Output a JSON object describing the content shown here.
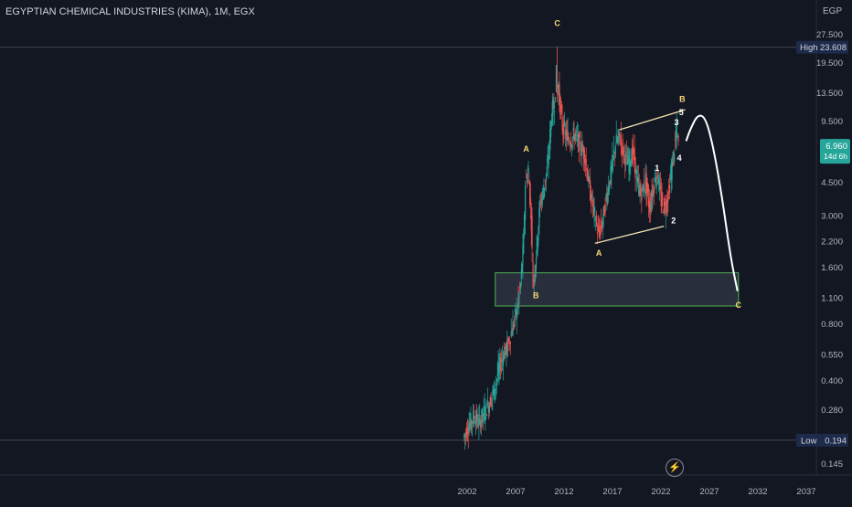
{
  "header": {
    "title": "EGYPTIAN CHEMICAL INDUSTRIES (KIMA), 1M, EGX",
    "currency": "EGP"
  },
  "price_scale": {
    "ticks": [
      "27.500",
      "19.500",
      "13.500",
      "9.500",
      "4.500",
      "3.000",
      "2.200",
      "1.600",
      "1.100",
      "0.800",
      "0.550",
      "0.400",
      "0.280",
      "0.145"
    ],
    "tick_values": [
      27.5,
      19.5,
      13.5,
      9.5,
      4.5,
      3.0,
      2.2,
      1.6,
      1.1,
      0.8,
      0.55,
      0.4,
      0.28,
      0.145
    ],
    "high": {
      "label": "High",
      "value": "23.608"
    },
    "low": {
      "label": "Low",
      "value": "0.194"
    },
    "last": {
      "value": "6.960",
      "countdown": "14d 6h"
    }
  },
  "time_scale": {
    "ticks": [
      "2002",
      "2007",
      "2012",
      "2017",
      "2022",
      "2027",
      "2032",
      "2037"
    ]
  },
  "colors": {
    "background": "#131722",
    "up": "#26a69a",
    "down": "#ef5350",
    "wave_label_yellow": "#f7d774",
    "wave_label_white": "#ffffff",
    "zone_border": "#4caf50",
    "zone_fill": "#2e3242",
    "axis_text": "#b2b5be",
    "high_low_bg": "#1e2a4a",
    "last_price_bg": "#26a69a"
  },
  "annotations": {
    "wave_labels": [
      {
        "text": "C",
        "year": 2011.3,
        "price": 30.5,
        "color": "yellow"
      },
      {
        "text": "A",
        "year": 2008.1,
        "price": 6.6,
        "color": "yellow"
      },
      {
        "text": "B",
        "year": 2009.1,
        "price": 1.1,
        "color": "yellow"
      },
      {
        "text": "A",
        "year": 2015.6,
        "price": 1.85,
        "color": "yellow"
      },
      {
        "text": "B",
        "year": 2024.2,
        "price": 12.1,
        "color": "yellow"
      },
      {
        "text": "5",
        "year": 2024.1,
        "price": 10.3,
        "color": "white"
      },
      {
        "text": "3",
        "year": 2023.6,
        "price": 9.1,
        "color": "white"
      },
      {
        "text": "1",
        "year": 2021.6,
        "price": 5.2,
        "color": "white"
      },
      {
        "text": "4",
        "year": 2023.9,
        "price": 5.9,
        "color": "white"
      },
      {
        "text": "2",
        "year": 2023.3,
        "price": 2.75,
        "color": "white"
      },
      {
        "text": "C",
        "year": 2030.0,
        "price": 0.98,
        "color": "yellow"
      }
    ],
    "support_zone": {
      "from_year": 2004.9,
      "to_year": 2030.0,
      "price_top": 1.5,
      "price_bottom": 1.0
    },
    "trendlines": [
      {
        "from": [
          2017.7,
          8.6
        ],
        "to": [
          2024.5,
          11.0
        ]
      },
      {
        "from": [
          2015.2,
          2.15
        ],
        "to": [
          2022.3,
          2.65
        ]
      }
    ],
    "projection_path": [
      [
        2024.6,
        7.5
      ],
      [
        2025.0,
        8.6
      ],
      [
        2025.8,
        10.4
      ],
      [
        2026.6,
        10.0
      ],
      [
        2027.4,
        7.0
      ],
      [
        2028.3,
        3.8
      ],
      [
        2029.2,
        1.8
      ],
      [
        2029.9,
        1.2
      ]
    ]
  },
  "chart_data": {
    "type": "candlestick",
    "title": "EGYPTIAN CHEMICAL INDUSTRIES (KIMA), 1M, EGX",
    "scale": "log",
    "x_range": [
      1997.5,
      2038.0
    ],
    "ylim": [
      0.125,
      35
    ],
    "high": 23.608,
    "low": 0.194,
    "last": 6.96,
    "path_points": [
      [
        2001.7,
        0.2
      ],
      [
        2002.2,
        0.23
      ],
      [
        2002.8,
        0.26
      ],
      [
        2003.3,
        0.24
      ],
      [
        2003.8,
        0.27
      ],
      [
        2004.3,
        0.3
      ],
      [
        2004.8,
        0.35
      ],
      [
        2005.3,
        0.45
      ],
      [
        2005.8,
        0.55
      ],
      [
        2006.3,
        0.62
      ],
      [
        2006.8,
        0.78
      ],
      [
        2007.2,
        0.95
      ],
      [
        2007.6,
        1.3
      ],
      [
        2007.9,
        2.2
      ],
      [
        2008.1,
        4.5
      ],
      [
        2008.4,
        5.2
      ],
      [
        2008.7,
        2.8
      ],
      [
        2008.9,
        1.3
      ],
      [
        2009.2,
        1.9
      ],
      [
        2009.6,
        3.5
      ],
      [
        2010.0,
        4.2
      ],
      [
        2010.4,
        5.6
      ],
      [
        2010.8,
        10.5
      ],
      [
        2011.1,
        12.0
      ],
      [
        2011.3,
        17.0
      ],
      [
        2011.6,
        12.5
      ],
      [
        2011.9,
        9.0
      ],
      [
        2012.3,
        8.0
      ],
      [
        2012.8,
        7.6
      ],
      [
        2013.2,
        8.2
      ],
      [
        2013.7,
        7.1
      ],
      [
        2014.2,
        6.4
      ],
      [
        2014.7,
        4.2
      ],
      [
        2015.2,
        3.1
      ],
      [
        2015.6,
        2.4
      ],
      [
        2016.0,
        2.7
      ],
      [
        2016.5,
        3.9
      ],
      [
        2016.9,
        5.0
      ],
      [
        2017.4,
        7.3
      ],
      [
        2017.8,
        7.9
      ],
      [
        2018.3,
        6.3
      ],
      [
        2018.7,
        5.7
      ],
      [
        2019.2,
        6.6
      ],
      [
        2019.6,
        4.6
      ],
      [
        2020.0,
        3.9
      ],
      [
        2020.5,
        4.6
      ],
      [
        2020.9,
        3.3
      ],
      [
        2021.3,
        4.3
      ],
      [
        2021.7,
        5.1
      ],
      [
        2022.1,
        3.6
      ],
      [
        2022.5,
        3.3
      ],
      [
        2022.9,
        4.1
      ],
      [
        2023.3,
        5.9
      ],
      [
        2023.7,
        8.5
      ],
      [
        2023.9,
        6.96
      ]
    ]
  }
}
